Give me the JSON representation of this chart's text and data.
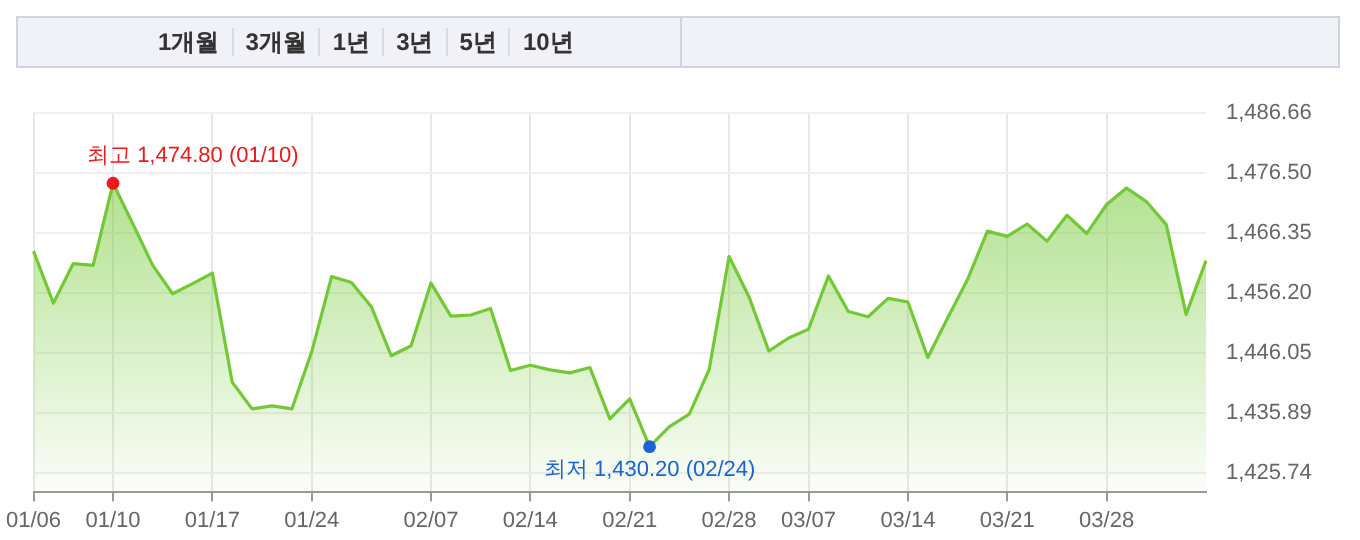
{
  "chart_data": {
    "type": "area",
    "categories": [
      "01/06",
      null,
      null,
      null,
      "01/10",
      null,
      null,
      null,
      null,
      "01/17",
      null,
      null,
      null,
      null,
      "01/24",
      null,
      null,
      null,
      null,
      null,
      "02/07",
      null,
      null,
      null,
      null,
      "02/14",
      null,
      null,
      null,
      null,
      "02/21",
      null,
      null,
      null,
      null,
      "02/28",
      null,
      null,
      null,
      "03/07",
      null,
      null,
      null,
      null,
      "03/14",
      null,
      null,
      null,
      null,
      "03/21",
      null,
      null,
      null,
      null,
      "03/28",
      null,
      null,
      null,
      null,
      null
    ],
    "series": [
      {
        "color": "#73c935",
        "values": [
          1463.3,
          1454.5,
          1461.2,
          1460.9,
          1474.8,
          1467.9,
          1460.9,
          1456.1,
          1457.8,
          1459.6,
          1441.1,
          1436.6,
          1437.1,
          1436.6,
          1446.3,
          1459.0,
          1458.0,
          1453.9,
          1445.6,
          1447.3,
          1457.9,
          1452.3,
          1452.5,
          1453.6,
          1443.1,
          1444.0,
          1443.2,
          1442.7,
          1443.6,
          1434.9,
          1438.3,
          1430.2,
          1433.6,
          1435.7,
          1443.3,
          1462.4,
          1455.6,
          1446.4,
          1448.6,
          1450.1,
          1459.1,
          1453.1,
          1452.2,
          1455.3,
          1454.7,
          1445.3,
          1452.0,
          1458.5,
          1466.7,
          1465.8,
          1467.9,
          1465.0,
          1469.4,
          1466.3,
          1471.2,
          1474.0,
          1471.7,
          1467.8,
          1452.6,
          1461.7
        ]
      }
    ],
    "ylim": [
      1422.6,
      1486.66
    ],
    "yticks": [
      {
        "value": 1425.74,
        "label": "1,425.74"
      },
      {
        "value": 1435.89,
        "label": "1,435.89"
      },
      {
        "value": 1446.05,
        "label": "1,446.05"
      },
      {
        "value": 1456.2,
        "label": "1,456.20"
      },
      {
        "value": 1466.35,
        "label": "1,466.35"
      },
      {
        "value": 1476.5,
        "label": "1,476.50"
      },
      {
        "value": 1486.66,
        "label": "1,486.66"
      }
    ],
    "grid": true,
    "annotations": [
      "1개월",
      "3개월",
      "1년",
      "3년",
      "5년",
      "10년",
      {
        "text": "최고 1,474.80 (01/10)",
        "x": "01/10",
        "y": 1474.8
      },
      {
        "text": "최저 1,430.20 (02/24)",
        "y": 1430.2
      }
    ]
  }
}
